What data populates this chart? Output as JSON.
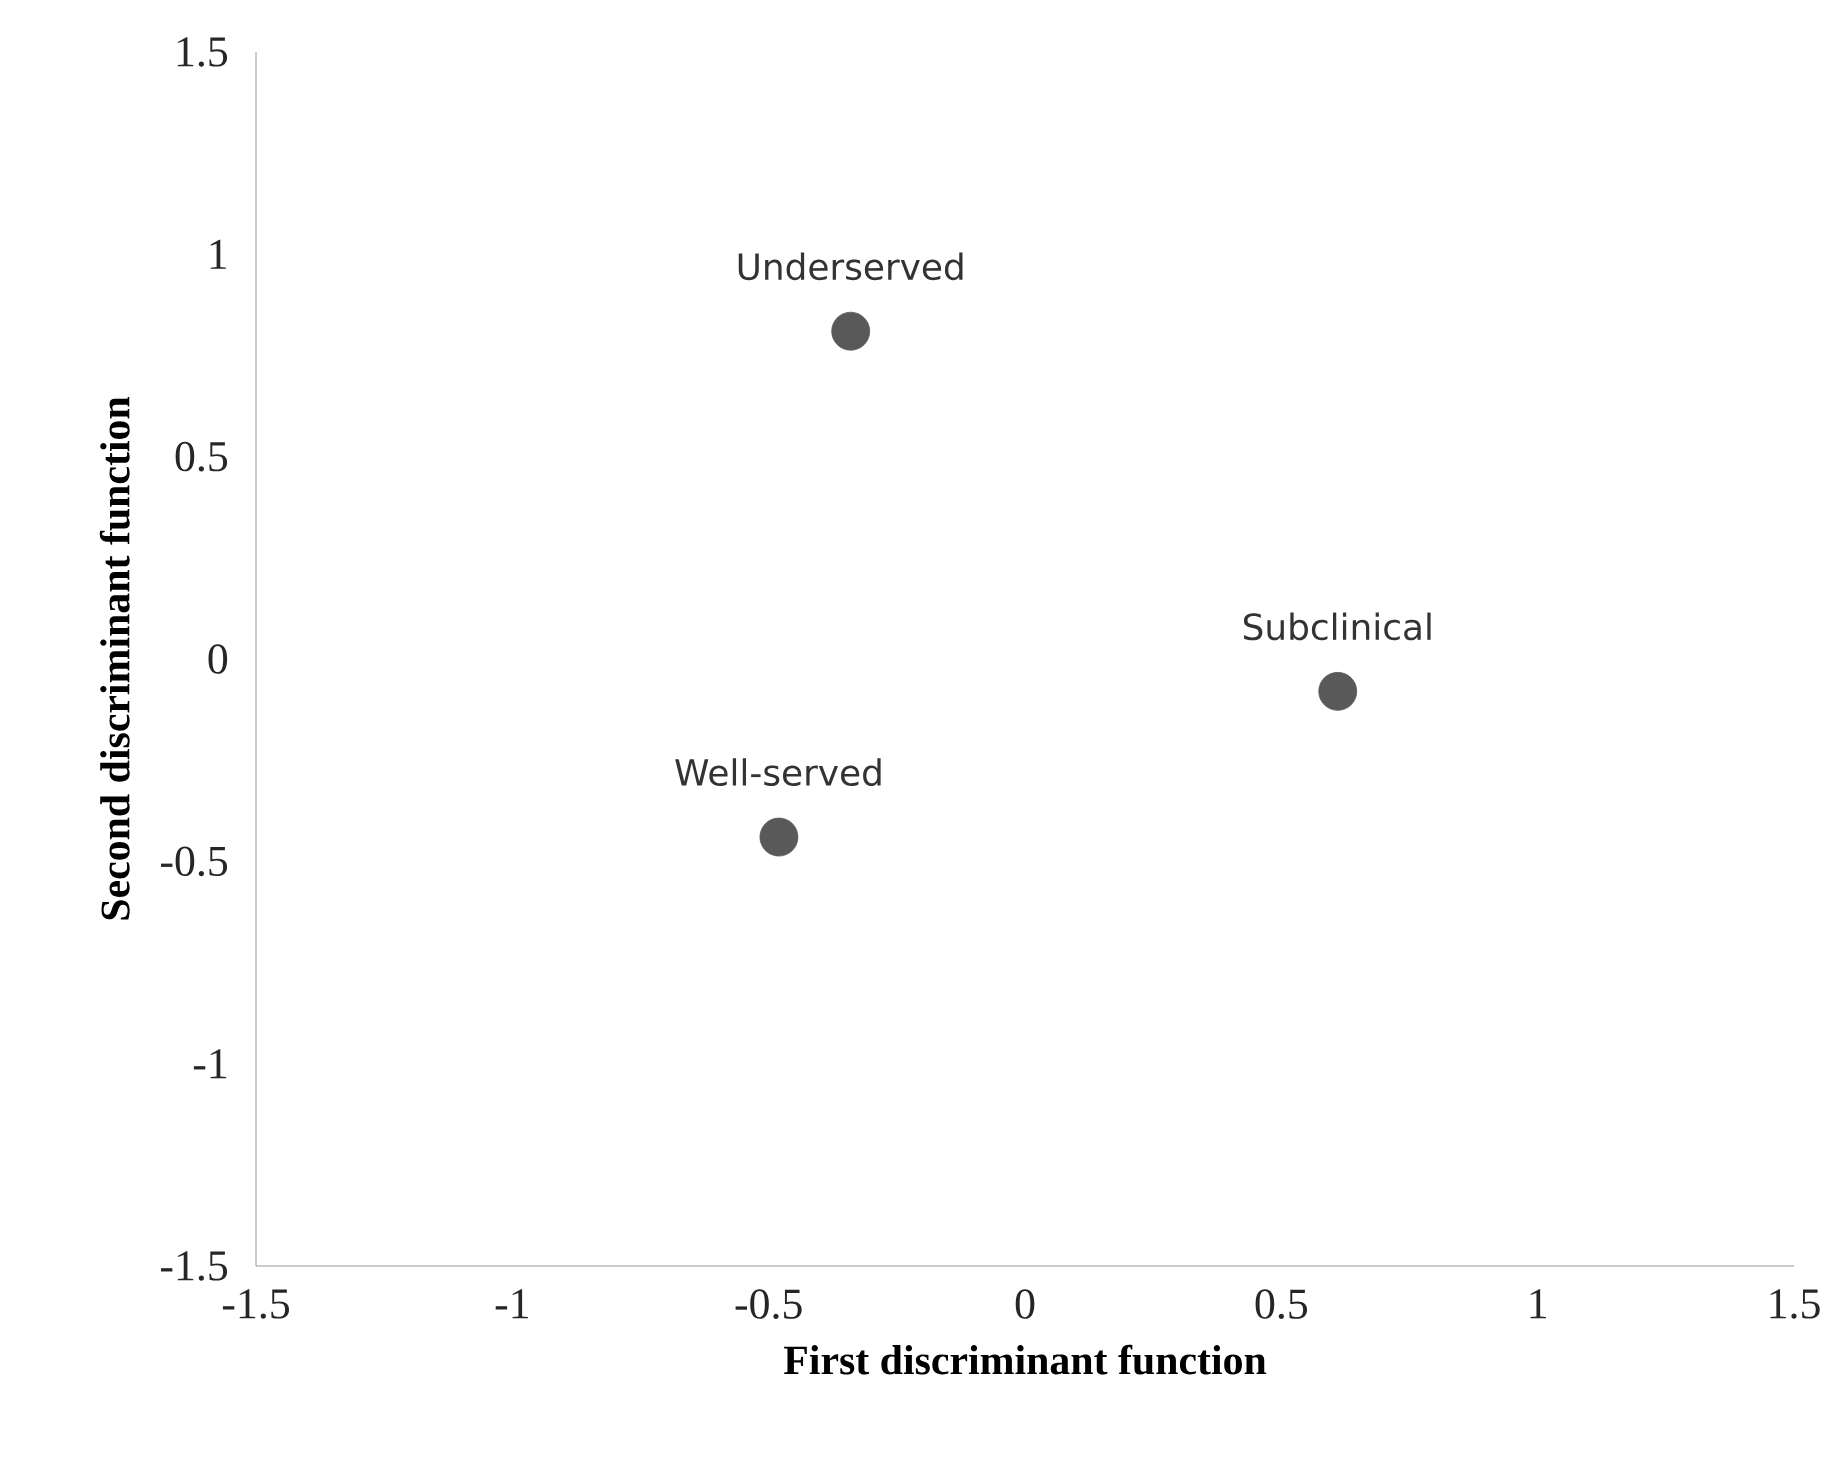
{
  "chart_data": {
    "type": "scatter",
    "xlabel": "First discriminant function",
    "ylabel": "Second discriminant function",
    "series": [
      {
        "color": "#595959",
        "x": [
          -0.34,
          0.61,
          -0.48
        ],
        "values": [
          0.81,
          -0.08,
          -0.44
        ]
      }
    ],
    "annotations": [
      {
        "text": "Underserved",
        "x": -0.34,
        "y": 0.81
      },
      {
        "text": "Subclinical",
        "x": 0.61,
        "y": -0.08
      },
      {
        "text": "Well-served",
        "x": -0.48,
        "y": -0.44
      }
    ],
    "xlim": [
      -1.5,
      1.5
    ],
    "ylim": [
      -1.5,
      1.5
    ],
    "xticks": [
      -1.5,
      -1,
      -0.5,
      0,
      0.5,
      1,
      1.5
    ],
    "yticks": [
      -1.5,
      -1,
      -0.5,
      0,
      0.5,
      1,
      1.5
    ],
    "grid": false,
    "marker": "circle"
  }
}
